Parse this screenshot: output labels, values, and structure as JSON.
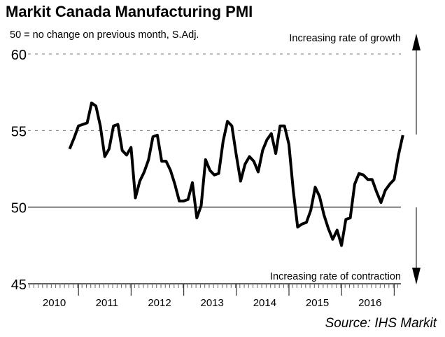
{
  "chart_data": {
    "type": "line",
    "title": "Markit Canada Manufacturing PMI",
    "subtitle": "50 = no change on previous month, S.Adj.",
    "source": "Source: IHS Markit",
    "annotations": {
      "top": "Increasing rate of growth",
      "bottom": "Increasing rate of contraction"
    },
    "xlabel": "",
    "ylabel": "",
    "ylim": [
      45,
      60
    ],
    "yticks": [
      45,
      50,
      55,
      60
    ],
    "ytick_labels": [
      "45",
      "50",
      "55",
      "60"
    ],
    "gridlines": [
      55,
      60
    ],
    "reference_line": 50,
    "x_years": [
      "2010",
      "2011",
      "2012",
      "2013",
      "2014",
      "2015",
      "2016"
    ],
    "x_start": "2010-01",
    "series_start": "2010-10",
    "series": [
      {
        "name": "Markit Canada Manufacturing PMI",
        "values": [
          53.8,
          54.5,
          55.3,
          55.4,
          55.5,
          56.8,
          56.6,
          55.3,
          53.3,
          53.8,
          55.3,
          55.4,
          53.7,
          53.4,
          53.9,
          50.6,
          51.7,
          52.3,
          53.1,
          54.6,
          54.7,
          53.0,
          53.0,
          52.4,
          51.5,
          50.4,
          50.4,
          50.5,
          51.6,
          49.3,
          50.1,
          53.1,
          52.4,
          52.1,
          52.2,
          54.3,
          55.6,
          55.3,
          53.4,
          51.7,
          52.8,
          53.3,
          53.0,
          52.3,
          53.7,
          54.4,
          54.8,
          53.5,
          55.3,
          55.3,
          54.1,
          51.1,
          48.7,
          48.9,
          49.0,
          49.8,
          51.3,
          50.7,
          49.5,
          48.6,
          47.9,
          48.5,
          47.5,
          49.2,
          49.3,
          51.5,
          52.2,
          52.1,
          51.8,
          51.8,
          51.0,
          50.3,
          51.1,
          51.5,
          51.8,
          53.4,
          54.7
        ]
      }
    ]
  }
}
